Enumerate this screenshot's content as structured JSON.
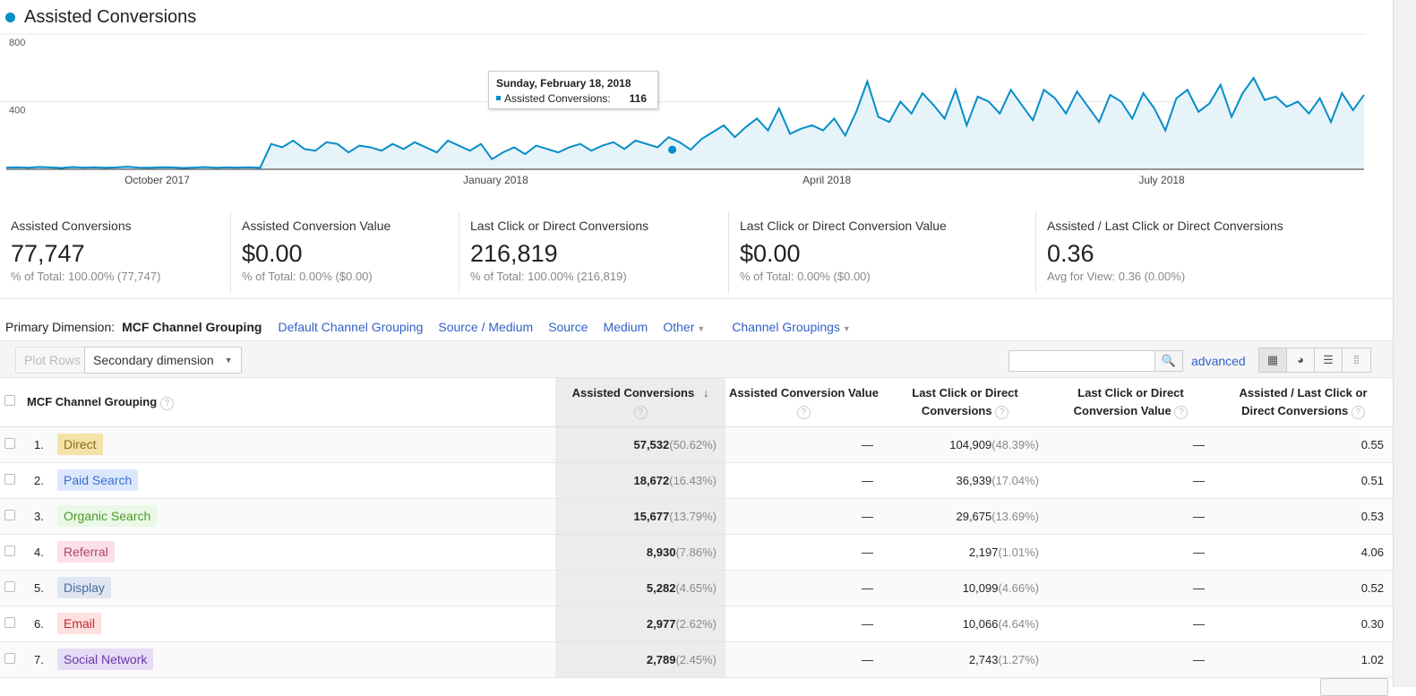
{
  "title": "Assisted Conversions",
  "colors": {
    "line": "#058dc7",
    "fill": "#e6f4fa"
  },
  "chart_data": {
    "type": "area",
    "title": "Assisted Conversions",
    "series_name": "Assisted Conversions",
    "x_start": "2017-08-21",
    "x_step_days": 3,
    "x_ticks": [
      "October 2017",
      "January 2018",
      "April 2018",
      "July 2018"
    ],
    "x_tick_dates": [
      "2017-10-01",
      "2018-01-01",
      "2018-04-01",
      "2018-07-01"
    ],
    "y_ticks": [
      400,
      800
    ],
    "ylim": [
      0,
      800
    ],
    "grid": true,
    "values": [
      10,
      12,
      9,
      14,
      11,
      8,
      13,
      10,
      12,
      9,
      11,
      15,
      10,
      9,
      12,
      11,
      8,
      10,
      13,
      9,
      11,
      10,
      12,
      9,
      150,
      130,
      170,
      120,
      110,
      160,
      150,
      100,
      140,
      130,
      110,
      150,
      120,
      160,
      130,
      100,
      170,
      140,
      110,
      150,
      60,
      100,
      130,
      90,
      140,
      120,
      100,
      130,
      150,
      110,
      140,
      160,
      120,
      170,
      150,
      130,
      190,
      160,
      116,
      180,
      220,
      260,
      190,
      250,
      300,
      230,
      360,
      210,
      240,
      260,
      230,
      300,
      200,
      340,
      520,
      310,
      280,
      400,
      330,
      450,
      380,
      300,
      470,
      260,
      430,
      400,
      330,
      470,
      380,
      290,
      470,
      420,
      330,
      460,
      370,
      280,
      440,
      400,
      300,
      450,
      360,
      230,
      420,
      470,
      340,
      390,
      500,
      310,
      450,
      540,
      410,
      430,
      370,
      400,
      330,
      420,
      280,
      450,
      350,
      440
    ],
    "tooltip": {
      "date": "Sunday, February 18, 2018",
      "label": "Assisted Conversions:",
      "value": "116",
      "date_iso": "2018-02-18"
    }
  },
  "metrics": [
    {
      "label": "Assisted Conversions",
      "value": "77,747",
      "sub": "% of Total: 100.00% (77,747)"
    },
    {
      "label": "Assisted Conversion Value",
      "value": "$0.00",
      "sub": "% of Total: 0.00% ($0.00)"
    },
    {
      "label": "Last Click or Direct Conversions",
      "value": "216,819",
      "sub": "% of Total: 100.00% (216,819)"
    },
    {
      "label": "Last Click or Direct Conversion Value",
      "value": "$0.00",
      "sub": "% of Total: 0.00% ($0.00)"
    },
    {
      "label": "Assisted / Last Click or Direct Conversions",
      "value": "0.36",
      "sub": "Avg for View: 0.36 (0.00%)"
    }
  ],
  "dimensions": {
    "label": "Primary Dimension:",
    "active": "MCF Channel Grouping",
    "links": [
      "Default Channel Grouping",
      "Source / Medium",
      "Source",
      "Medium"
    ],
    "other": "Other",
    "groupings": "Channel Groupings"
  },
  "toolbar": {
    "plot_rows": "Plot Rows",
    "secondary": "Secondary dimension",
    "search_placeholder": "",
    "advanced": "advanced"
  },
  "table": {
    "headers": {
      "dim": "MCF Channel Grouping",
      "c1": "Assisted Conversions",
      "c2": "Assisted Conversion Value",
      "c3a": "Last Click or Direct",
      "c3b": "Conversions",
      "c4a": "Last Click or Direct",
      "c4b": "Conversion Value",
      "c5a": "Assisted / Last Click or",
      "c5b": "Direct Conversions",
      "help": "?"
    },
    "rows": [
      {
        "idx": "1.",
        "name": "Direct",
        "bg": "#f4e3a6",
        "fg": "#8a6d1a",
        "ac": "57,532",
        "acp": "(50.62%)",
        "acv": "—",
        "lc": "104,909",
        "lcp": "(48.39%)",
        "lcv": "—",
        "ratio": "0.55"
      },
      {
        "idx": "2.",
        "name": "Paid Search",
        "bg": "#dbe8fc",
        "fg": "#3a6ed0",
        "ac": "18,672",
        "acp": "(16.43%)",
        "acv": "—",
        "lc": "36,939",
        "lcp": "(17.04%)",
        "lcv": "—",
        "ratio": "0.51"
      },
      {
        "idx": "3.",
        "name": "Organic Search",
        "bg": "#eaf8e6",
        "fg": "#4a9a2a",
        "ac": "15,677",
        "acp": "(13.79%)",
        "acv": "—",
        "lc": "29,675",
        "lcp": "(13.69%)",
        "lcv": "—",
        "ratio": "0.53"
      },
      {
        "idx": "4.",
        "name": "Referral",
        "bg": "#fbe0ea",
        "fg": "#b0456a",
        "ac": "8,930",
        "acp": "(7.86%)",
        "acv": "—",
        "lc": "2,197",
        "lcp": "(1.01%)",
        "lcv": "—",
        "ratio": "4.06"
      },
      {
        "idx": "5.",
        "name": "Display",
        "bg": "#dfe6f2",
        "fg": "#4a6a9a",
        "ac": "5,282",
        "acp": "(4.65%)",
        "acv": "—",
        "lc": "10,099",
        "lcp": "(4.66%)",
        "lcv": "—",
        "ratio": "0.52"
      },
      {
        "idx": "6.",
        "name": "Email",
        "bg": "#fde0e0",
        "fg": "#c42a2a",
        "ac": "2,977",
        "acp": "(2.62%)",
        "acv": "—",
        "lc": "10,066",
        "lcp": "(4.64%)",
        "lcv": "—",
        "ratio": "0.30"
      },
      {
        "idx": "7.",
        "name": "Social Network",
        "bg": "#e6dcf6",
        "fg": "#6a3aa8",
        "ac": "2,789",
        "acp": "(2.45%)",
        "acv": "—",
        "lc": "2,743",
        "lcp": "(1.27%)",
        "lcv": "—",
        "ratio": "1.02"
      }
    ]
  }
}
